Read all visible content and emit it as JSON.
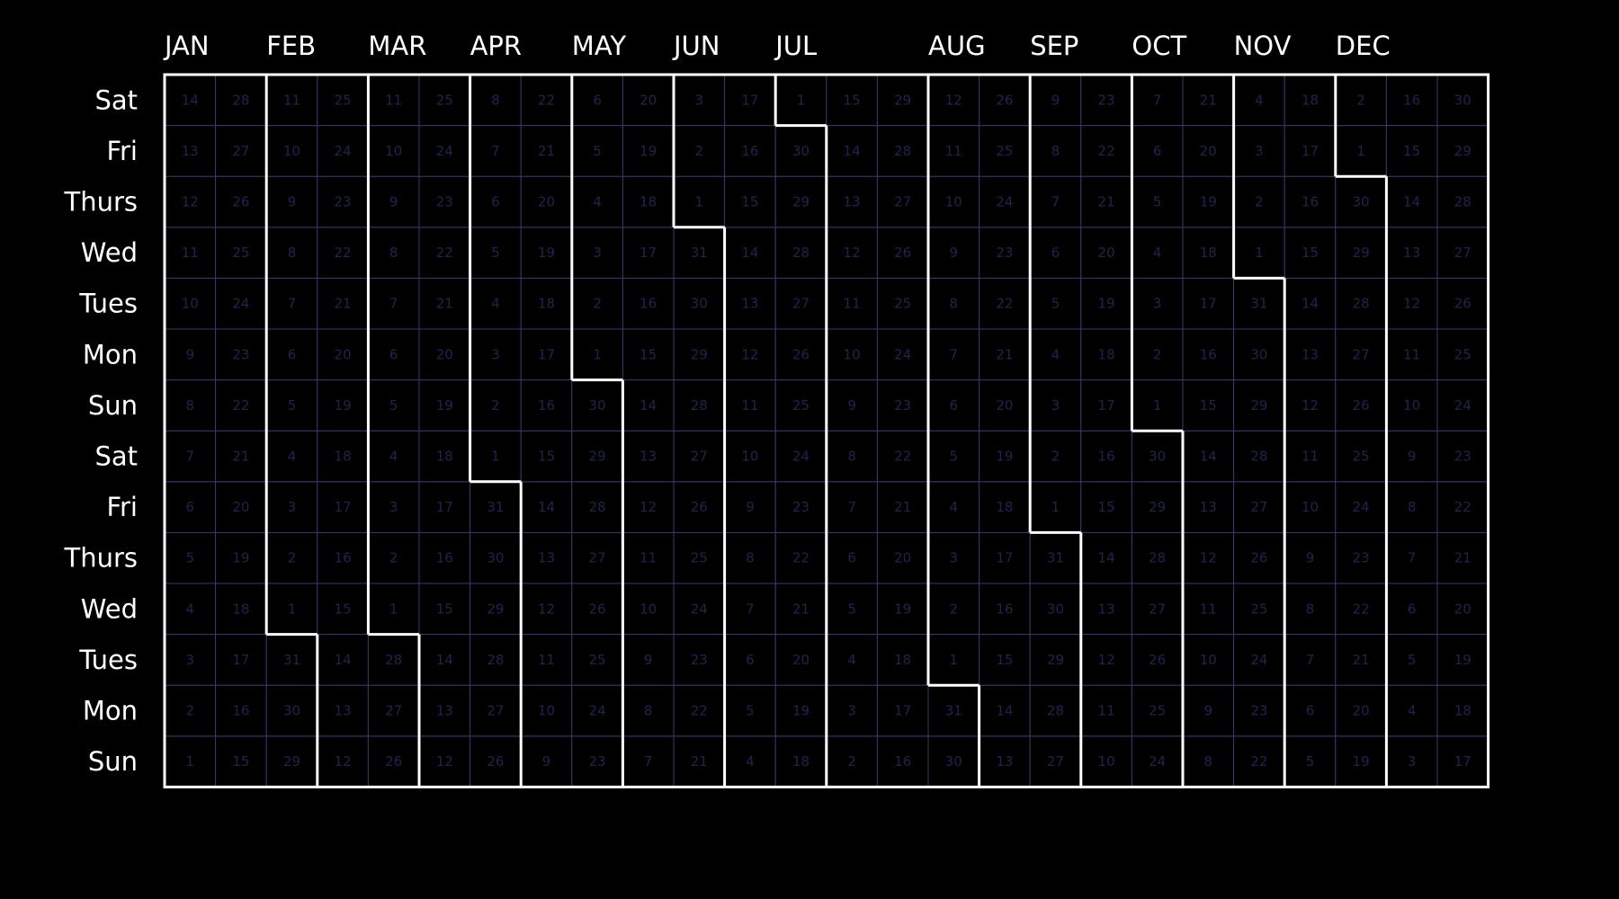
{
  "chart_data": {
    "type": "heatmap",
    "title": "",
    "xlabel": "",
    "ylabel": "",
    "months": [
      "JAN",
      "FEB",
      "MAR",
      "APR",
      "MAY",
      "JUN",
      "JUL",
      "AUG",
      "SEP",
      "OCT",
      "NOV",
      "DEC"
    ],
    "weekday_rows_top_to_bottom": [
      "Sat",
      "Fri",
      "Thurs",
      "Wed",
      "Tues",
      "Mon",
      "Sun",
      "Sat",
      "Fri",
      "Thurs",
      "Wed",
      "Tues",
      "Mon",
      "Sun"
    ],
    "month_lengths": [
      31,
      28,
      31,
      30,
      31,
      30,
      31,
      31,
      30,
      31,
      30,
      31
    ],
    "first_day_weekday_of_year": "Sun",
    "weeks_shown": 26,
    "days_per_column": 14,
    "colors": {
      "background": "#000000",
      "cell": "#000000",
      "grid": "#3a3a66",
      "day_number": "#20244a",
      "boundary": "#ffffff",
      "label": "#ffffff"
    }
  }
}
